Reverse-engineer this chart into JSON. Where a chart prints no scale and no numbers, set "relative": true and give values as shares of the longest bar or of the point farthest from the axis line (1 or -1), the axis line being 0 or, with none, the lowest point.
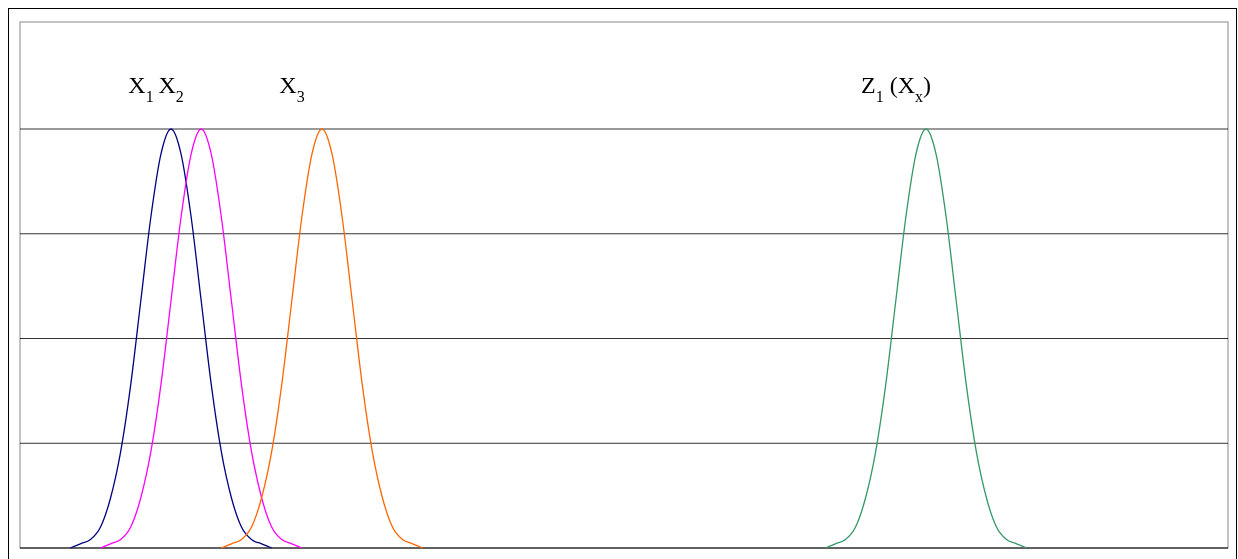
{
  "chart_data": {
    "type": "line",
    "relative": true,
    "grid": "y",
    "categories": [
      null,
      null,
      null,
      null,
      null,
      null,
      null,
      null,
      null,
      null,
      null,
      null,
      null,
      null,
      null,
      null,
      null,
      null,
      null,
      null,
      null,
      null,
      null,
      null,
      null,
      null,
      null,
      null,
      null,
      null,
      null,
      null,
      null,
      null,
      null,
      null,
      null,
      null,
      null,
      null,
      null,
      null,
      null,
      null,
      null,
      null,
      null,
      null,
      null,
      null,
      null,
      null,
      null,
      null,
      null,
      null,
      null,
      null,
      null,
      null,
      null,
      null,
      null,
      null,
      null,
      null,
      null,
      null,
      null,
      null,
      null,
      null,
      null,
      null,
      null,
      null,
      null,
      null,
      null,
      null,
      null,
      null,
      null,
      null,
      null,
      null,
      null,
      null,
      null,
      null,
      null,
      null,
      null,
      null,
      null,
      null,
      null,
      null,
      null,
      null,
      null,
      null,
      null,
      null,
      null,
      null,
      null,
      null,
      null,
      null,
      null,
      null,
      null,
      null,
      null,
      null,
      null,
      null,
      null,
      null,
      null
    ],
    "series": [
      {
        "name": "X$_{1}$",
        "color": "#000080",
        "values": [
          null,
          null,
          null,
          null,
          null,
          0,
          0.01,
          0.02,
          0.05,
          0.12,
          0.23,
          0.39,
          0.59,
          0.79,
          0.94,
          1,
          0.94,
          0.79,
          0.59,
          0.39,
          0.23,
          0.12,
          0.05,
          0.02,
          0.01,
          0,
          null,
          null,
          null,
          null,
          null,
          null,
          null,
          null,
          null,
          null,
          null,
          null,
          null,
          null,
          null,
          null,
          null,
          null,
          null,
          null,
          null,
          null,
          null,
          null,
          null,
          null,
          null,
          null,
          null,
          null,
          null,
          null,
          null,
          null,
          null,
          null,
          null,
          null,
          null,
          null,
          null,
          null,
          null,
          null,
          null,
          null,
          null,
          null,
          null,
          null,
          null,
          null,
          null,
          null,
          null,
          null,
          null,
          null,
          null,
          null,
          null,
          null,
          null,
          null,
          null,
          null,
          null,
          null,
          null,
          null,
          null,
          null,
          null,
          null,
          null,
          null,
          null,
          null,
          null,
          null,
          null,
          null,
          null,
          null,
          null,
          null,
          null,
          null,
          null,
          null,
          null,
          null,
          null,
          null,
          null
        ]
      },
      {
        "name": "X$_{2}$",
        "color": "#ff00ff",
        "values": [
          null,
          null,
          null,
          null,
          null,
          null,
          null,
          null,
          0,
          0.01,
          0.02,
          0.05,
          0.12,
          0.23,
          0.39,
          0.59,
          0.79,
          0.94,
          1,
          0.94,
          0.79,
          0.59,
          0.39,
          0.23,
          0.12,
          0.05,
          0.02,
          0.01,
          0,
          null,
          null,
          null,
          null,
          null,
          null,
          null,
          null,
          null,
          null,
          null,
          null,
          null,
          null,
          null,
          null,
          null,
          null,
          null,
          null,
          null,
          null,
          null,
          null,
          null,
          null,
          null,
          null,
          null,
          null,
          null,
          null,
          null,
          null,
          null,
          null,
          null,
          null,
          null,
          null,
          null,
          null,
          null,
          null,
          null,
          null,
          null,
          null,
          null,
          null,
          null,
          null,
          null,
          null,
          null,
          null,
          null,
          null,
          null,
          null,
          null,
          null,
          null,
          null,
          null,
          null,
          null,
          null,
          null,
          null,
          null,
          null,
          null,
          null,
          null,
          null,
          null,
          null,
          null,
          null,
          null,
          null,
          null,
          null,
          null,
          null,
          null,
          null,
          null,
          null,
          null,
          null
        ]
      },
      {
        "name": "X$_{3}$",
        "color": "#ff6600",
        "values": [
          null,
          null,
          null,
          null,
          null,
          null,
          null,
          null,
          null,
          null,
          null,
          null,
          null,
          null,
          null,
          null,
          null,
          null,
          null,
          null,
          0,
          0.01,
          0.02,
          0.05,
          0.12,
          0.23,
          0.39,
          0.59,
          0.79,
          0.94,
          1,
          0.94,
          0.79,
          0.59,
          0.39,
          0.23,
          0.12,
          0.05,
          0.02,
          0.01,
          0,
          null,
          null,
          null,
          null,
          null,
          null,
          null,
          null,
          null,
          null,
          null,
          null,
          null,
          null,
          null,
          null,
          null,
          null,
          null,
          null,
          null,
          null,
          null,
          null,
          null,
          null,
          null,
          null,
          null,
          null,
          null,
          null,
          null,
          null,
          null,
          null,
          null,
          null,
          null,
          null,
          null,
          null,
          null,
          null,
          null,
          null,
          null,
          null,
          null,
          null,
          null,
          null,
          null,
          null,
          null,
          null,
          null,
          null,
          null,
          null,
          null,
          null,
          null,
          null,
          null,
          null,
          null,
          null,
          null,
          null,
          null,
          null,
          null,
          null,
          null,
          null,
          null,
          null,
          null,
          null
        ]
      },
      {
        "name": "Z$_{1}$ (X$_{x}$)",
        "color": "#339966",
        "values": [
          null,
          null,
          null,
          null,
          null,
          null,
          null,
          null,
          null,
          null,
          null,
          null,
          null,
          null,
          null,
          null,
          null,
          null,
          null,
          null,
          null,
          null,
          null,
          null,
          null,
          null,
          null,
          null,
          null,
          null,
          null,
          null,
          null,
          null,
          null,
          null,
          null,
          null,
          null,
          null,
          null,
          null,
          null,
          null,
          null,
          null,
          null,
          null,
          null,
          null,
          null,
          null,
          null,
          null,
          null,
          null,
          null,
          null,
          null,
          null,
          null,
          null,
          null,
          null,
          null,
          null,
          null,
          null,
          null,
          null,
          null,
          null,
          null,
          null,
          null,
          null,
          null,
          null,
          null,
          null,
          0,
          0.01,
          0.02,
          0.05,
          0.12,
          0.23,
          0.39,
          0.59,
          0.79,
          0.94,
          1,
          0.94,
          0.79,
          0.59,
          0.39,
          0.23,
          0.12,
          0.05,
          0.02,
          0.01,
          0,
          null,
          null,
          null,
          null,
          null,
          null,
          null,
          null,
          null,
          null,
          null,
          null,
          null,
          null,
          null,
          null,
          null,
          null,
          null,
          null
        ]
      }
    ]
  }
}
